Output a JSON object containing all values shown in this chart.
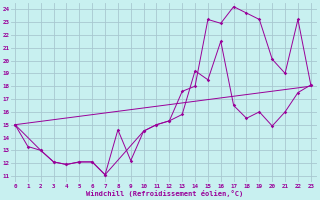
{
  "xlabel": "Windchill (Refroidissement éolien,°C)",
  "bg_color": "#c8f0f0",
  "grid_color": "#a8c8d0",
  "line_color": "#990099",
  "xlim": [
    -0.3,
    23.5
  ],
  "ylim": [
    10.5,
    24.5
  ],
  "xticks": [
    0,
    1,
    2,
    3,
    4,
    5,
    6,
    7,
    8,
    9,
    10,
    11,
    12,
    13,
    14,
    15,
    16,
    17,
    18,
    19,
    20,
    21,
    22,
    23
  ],
  "yticks": [
    11,
    12,
    13,
    14,
    15,
    16,
    17,
    18,
    19,
    20,
    21,
    22,
    23,
    24
  ],
  "line1_x": [
    0,
    1,
    2,
    3,
    4,
    5,
    6,
    7,
    8,
    9,
    10,
    11,
    12,
    13,
    14,
    15,
    16,
    17,
    18,
    19,
    20,
    21,
    22,
    23
  ],
  "line1_y": [
    15,
    13.3,
    13.0,
    12.1,
    11.9,
    12.1,
    12.1,
    11.1,
    14.6,
    12.2,
    14.5,
    15.0,
    15.3,
    17.6,
    18.0,
    23.2,
    22.9,
    24.2,
    23.7,
    23.2,
    20.1,
    19.0,
    23.2,
    18.1
  ],
  "line2_x": [
    0,
    2,
    3,
    4,
    5,
    6,
    7,
    10,
    11,
    12,
    13,
    14,
    15,
    16,
    17,
    18,
    19,
    20,
    21,
    22,
    23
  ],
  "line2_y": [
    15,
    13.0,
    12.1,
    11.9,
    12.1,
    12.1,
    11.1,
    14.5,
    15.0,
    15.3,
    15.8,
    19.2,
    18.5,
    21.5,
    16.5,
    15.5,
    16.0,
    14.9,
    16.0,
    17.5,
    18.1
  ],
  "line3_x": [
    0,
    23
  ],
  "line3_y": [
    15,
    18.0
  ]
}
